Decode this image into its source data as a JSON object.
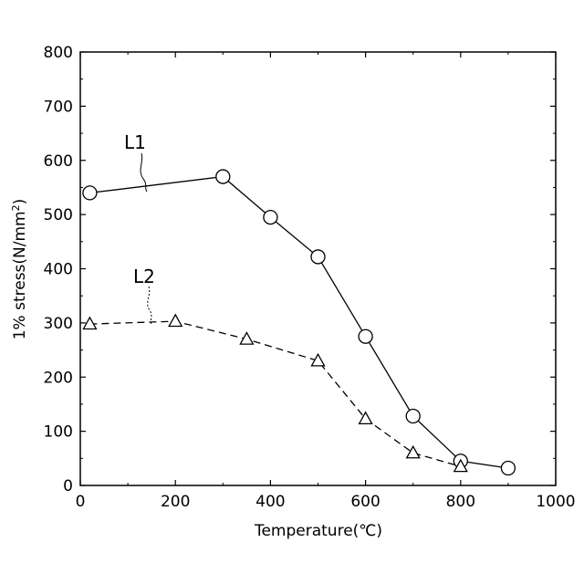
{
  "chart_data": {
    "type": "line",
    "xlabel": "Temperature(℃)",
    "ylabel_main": "1% stress(N/mm",
    "ylabel_sup": "2",
    "ylabel_close": ")",
    "xlim": [
      0,
      1000
    ],
    "ylim": [
      0,
      800
    ],
    "x_ticks": [
      0,
      200,
      400,
      600,
      800,
      1000
    ],
    "x_tick_labels": [
      "0",
      "200",
      "400",
      "600",
      "800",
      "1000"
    ],
    "y_ticks": [
      0,
      100,
      200,
      300,
      400,
      500,
      600,
      700,
      800
    ],
    "y_tick_labels": [
      "0",
      "100",
      "200",
      "300",
      "400",
      "500",
      "600",
      "700",
      "800"
    ],
    "grid": false,
    "series": [
      {
        "name": "L1",
        "marker": "circle",
        "line_style": "solid",
        "x": [
          20,
          300,
          400,
          500,
          600,
          700,
          800,
          900
        ],
        "y": [
          540,
          570,
          495,
          422,
          275,
          128,
          45,
          32
        ]
      },
      {
        "name": "L2",
        "marker": "triangle",
        "line_style": "dashed",
        "x": [
          20,
          200,
          350,
          500,
          600,
          700,
          800
        ],
        "y": [
          298,
          303,
          270,
          230,
          123,
          60,
          35
        ]
      }
    ]
  }
}
